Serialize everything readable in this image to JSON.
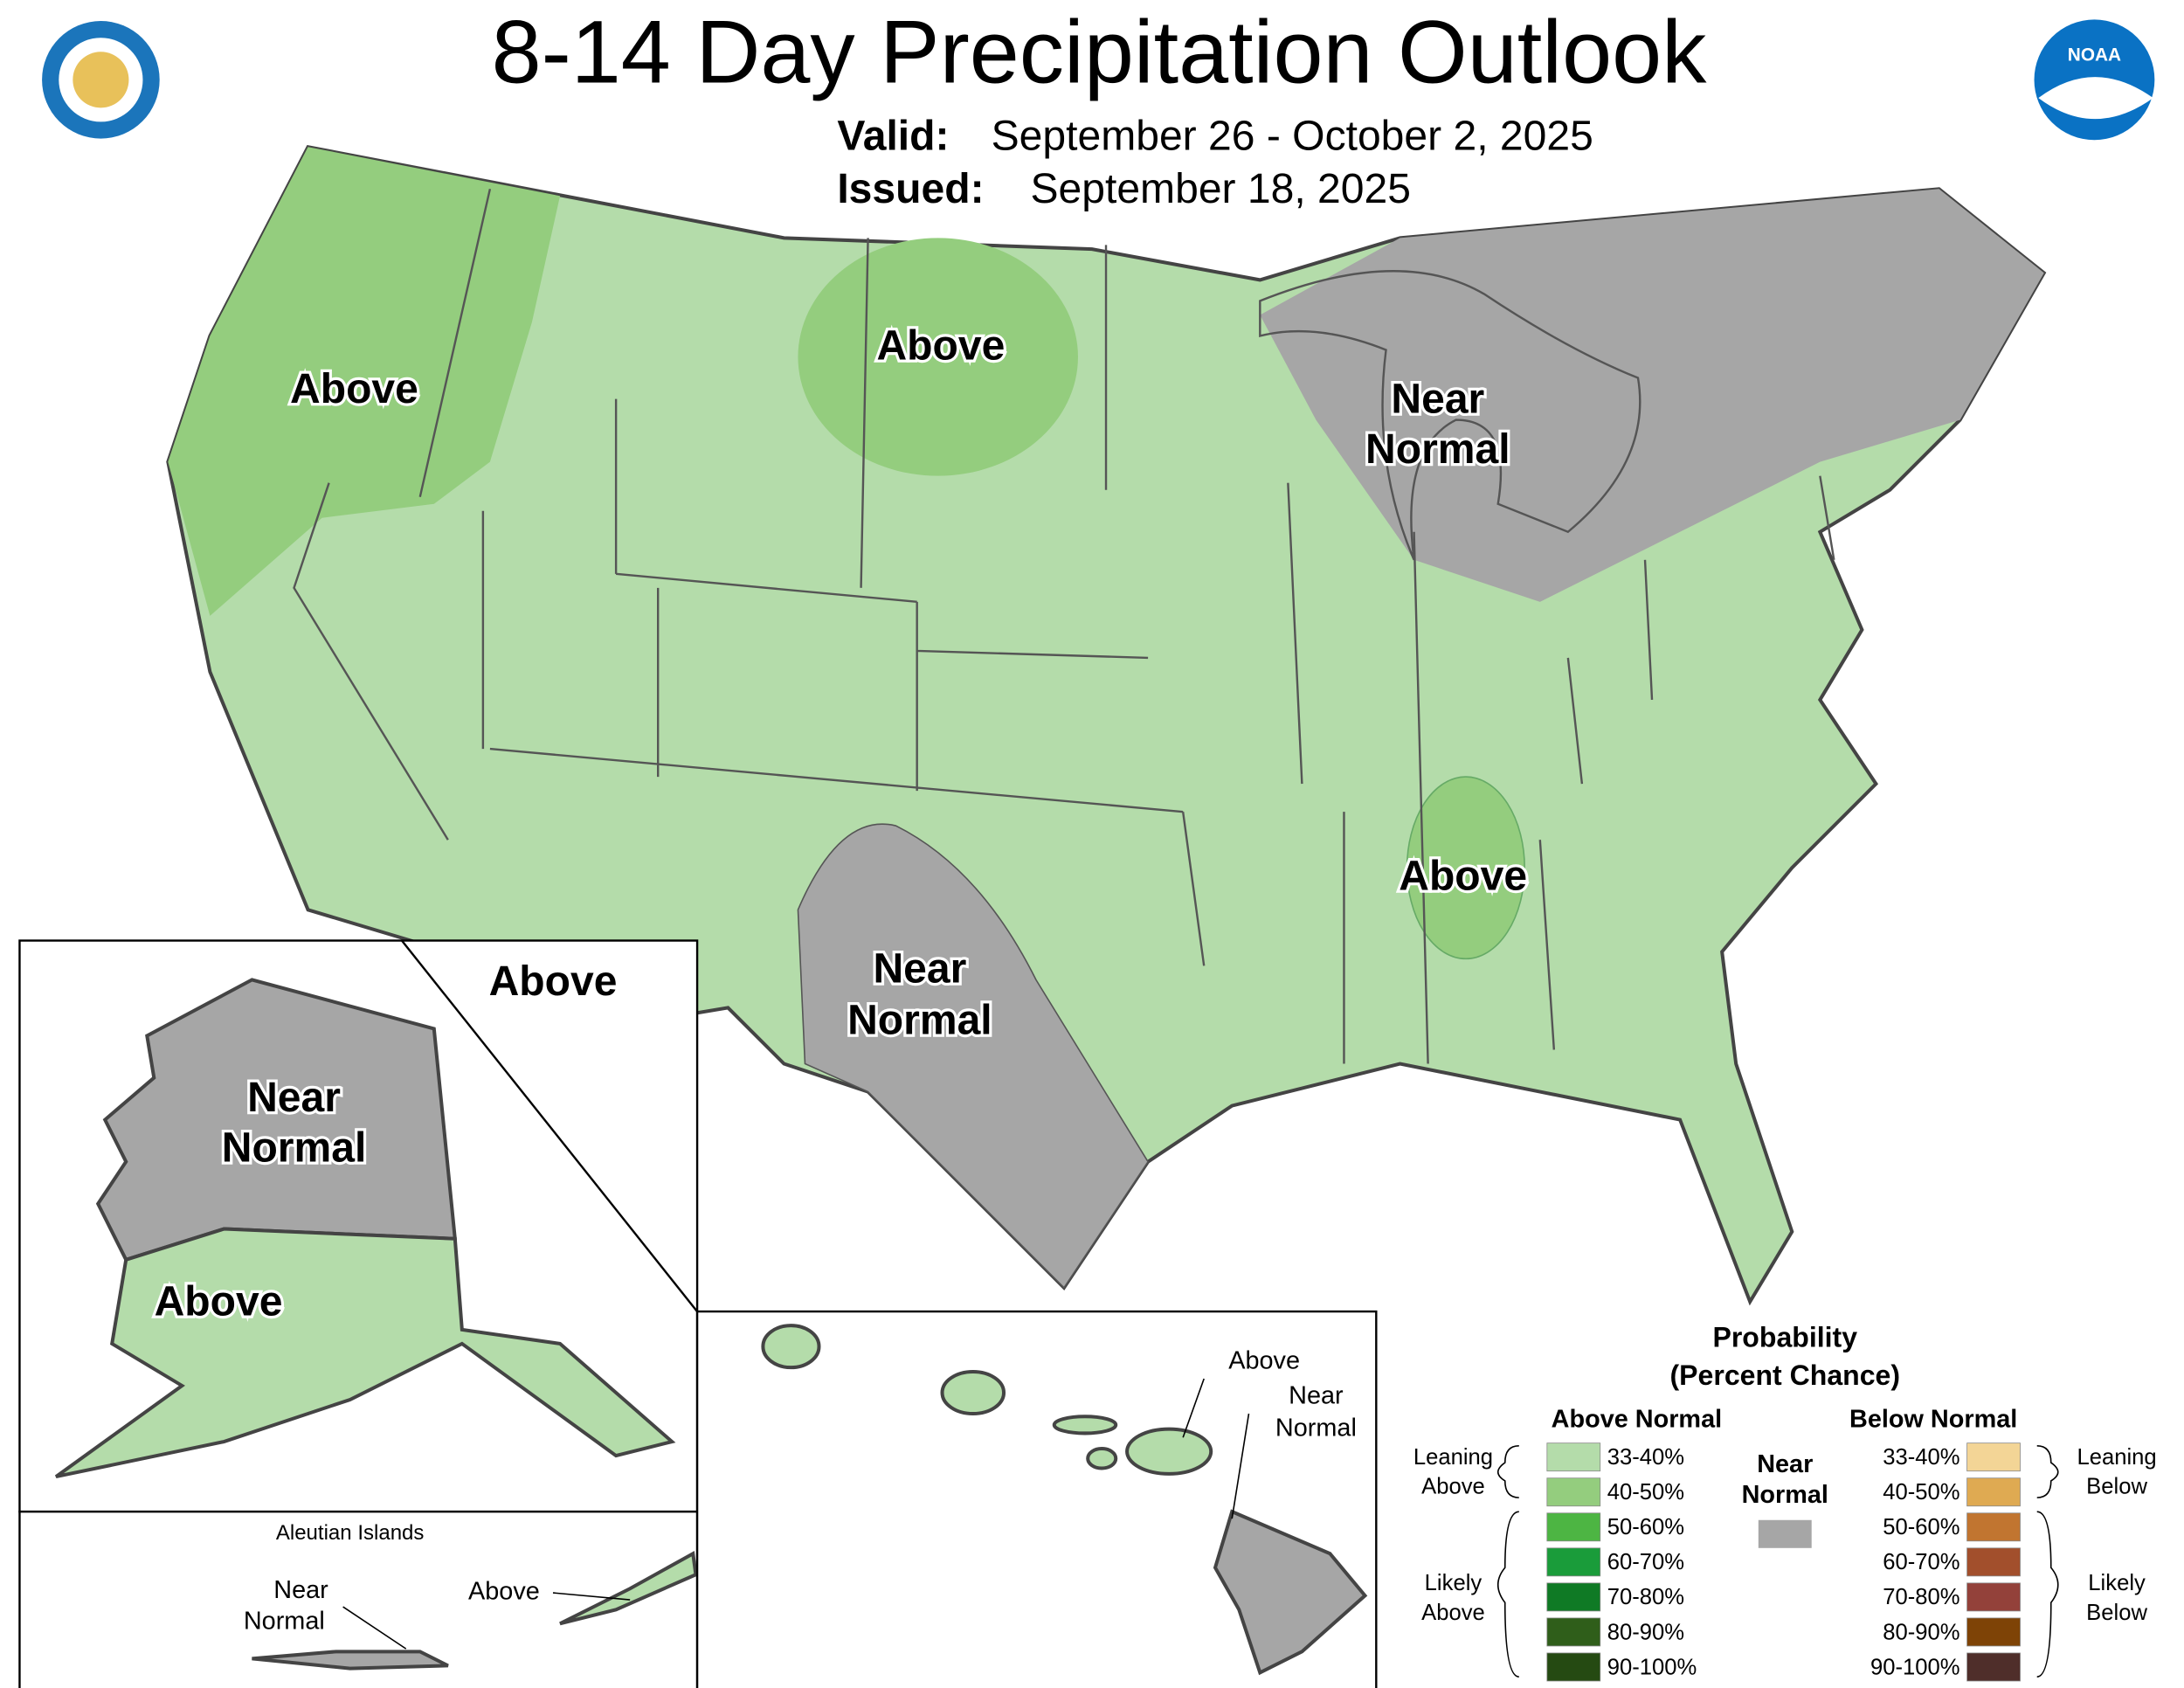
{
  "header": {
    "title": "8-14 Day Precipitation Outlook",
    "valid_label": "Valid:",
    "valid": "September 26 - October 2, 2025",
    "issued_label": "Issued:",
    "issued": "September 18, 2025",
    "noaa_logo_text": "NOAA"
  },
  "map_labels": [
    [
      "Above"
    ],
    [
      "Above"
    ],
    [
      "Near",
      "Normal"
    ],
    [
      "Above"
    ],
    [
      "Near",
      "Normal"
    ],
    [
      "Above"
    ],
    [
      "Near",
      "Normal"
    ],
    [
      "Above"
    ]
  ],
  "insets": {
    "aleutian_title": "Aleutian Islands",
    "aleutian_near": [
      "Near",
      "Normal"
    ],
    "aleutian_above": "Above",
    "hawaii_above": "Above",
    "hawaii_near": [
      "Near",
      "Normal"
    ]
  },
  "legend": {
    "title": [
      "Probability",
      "(Percent Chance)"
    ],
    "above_header": "Above Normal",
    "below_header": "Below Normal",
    "near_label": [
      "Near",
      "Normal"
    ],
    "near_color": "#a6a6a6",
    "above_ranges": [
      "33-40%",
      "40-50%",
      "50-60%",
      "60-70%",
      "70-80%",
      "80-90%",
      "90-100%"
    ],
    "above_colors": [
      "#b4dcaa",
      "#94cd7e",
      "#4db543",
      "#1a9c3a",
      "#0f7a25",
      "#2f5e1a",
      "#254a12"
    ],
    "below_ranges": [
      "33-40%",
      "40-50%",
      "50-60%",
      "60-70%",
      "70-80%",
      "80-90%",
      "90-100%"
    ],
    "below_colors": [
      "#f3d596",
      "#dfaa52",
      "#c17530",
      "#a24f2c",
      "#93413a",
      "#7e4306",
      "#4f2e2a"
    ],
    "leaning_above": [
      "Leaning",
      "Above"
    ],
    "likely_above": [
      "Likely",
      "Above"
    ],
    "leaning_below": [
      "Leaning",
      "Below"
    ],
    "likely_below": [
      "Likely",
      "Below"
    ]
  }
}
